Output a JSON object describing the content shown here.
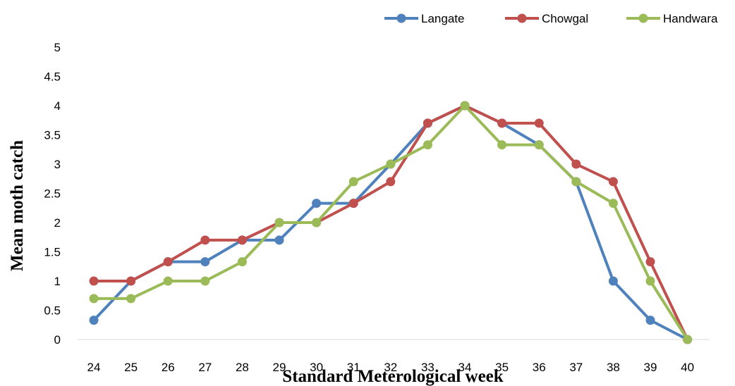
{
  "chart_data": {
    "type": "line",
    "title": "",
    "xlabel": "Standard Meterological week",
    "ylabel": "Mean moth catch",
    "x": [
      "24",
      "25",
      "26",
      "27",
      "28",
      "29",
      "30",
      "31",
      "32",
      "33",
      "34",
      "35",
      "36",
      "37",
      "38",
      "39",
      "40"
    ],
    "ylim": [
      0,
      5
    ],
    "yticks": [
      "0",
      "0.5",
      "1",
      "1.5",
      "2",
      "2.5",
      "3",
      "3.5",
      "4",
      "4.5",
      "5"
    ],
    "grid": false,
    "legend_position": "top-right",
    "series": [
      {
        "name": "Langate",
        "color": "#4F81BD",
        "values": [
          0.33,
          1,
          1.33,
          1.33,
          1.7,
          1.7,
          2.33,
          2.33,
          3,
          3.7,
          4,
          3.7,
          3.33,
          2.7,
          1,
          0.33,
          0
        ]
      },
      {
        "name": "Chowgal",
        "color": "#C0504D",
        "values": [
          1,
          1,
          1.33,
          1.7,
          1.7,
          2,
          2,
          2.33,
          2.7,
          3.7,
          4,
          3.7,
          3.7,
          3,
          2.7,
          1.33,
          0
        ]
      },
      {
        "name": "Handwara",
        "color": "#9BBB59",
        "values": [
          0.7,
          0.7,
          1,
          1,
          1.33,
          2,
          2,
          2.7,
          3,
          3.33,
          4,
          3.33,
          3.33,
          2.7,
          2.33,
          1,
          0
        ]
      }
    ]
  }
}
